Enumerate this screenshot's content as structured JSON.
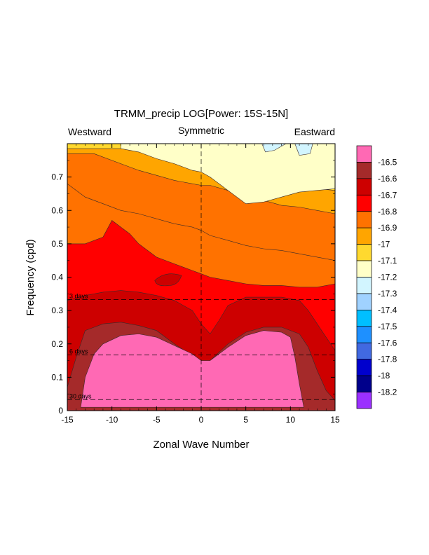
{
  "chart_data": {
    "type": "heatmap",
    "title": "TRMM_precip LOG[Power: 15S-15N]",
    "header_labels": {
      "left": "Westward",
      "center": "Symmetric",
      "right": "Eastward"
    },
    "xlabel": "Zonal Wave Number",
    "ylabel": "Frequency (cpd)",
    "xlim": [
      -15,
      15
    ],
    "ylim": [
      0,
      0.8
    ],
    "x_ticks": [
      -15,
      -10,
      -5,
      0,
      5,
      10,
      15
    ],
    "x_tick_labels": [
      "-15",
      "-10",
      "-5",
      "0",
      "5",
      "10",
      "15"
    ],
    "y_ticks": [
      0,
      0.1,
      0.2,
      0.3,
      0.4,
      0.5,
      0.6,
      0.7
    ],
    "y_tick_labels": [
      "0",
      "0.1",
      "0.2",
      "0.3",
      "0.4",
      "0.5",
      "0.6",
      "0.7"
    ],
    "period_lines": [
      {
        "label": "3 days",
        "frequency": 0.333
      },
      {
        "label": "6 days",
        "frequency": 0.167
      },
      {
        "label": "30 days",
        "frequency": 0.033
      }
    ],
    "colorbar": {
      "labels": [
        "-16.5",
        "-16.6",
        "-16.7",
        "-16.8",
        "-16.9",
        "-17",
        "-17.1",
        "-17.2",
        "-17.3",
        "-17.4",
        "-17.5",
        "-17.6",
        "-17.8",
        "-18",
        "-18.2"
      ],
      "colors": [
        "#ff69b4",
        "#a52a2a",
        "#cd0000",
        "#ff0000",
        "#ff7200",
        "#ffa500",
        "#ffd92f",
        "#ffffc8",
        "#d2f5ff",
        "#a0d2ff",
        "#00bfff",
        "#1e90ff",
        "#4169e1",
        "#0000cd",
        "#00008b",
        "#9b30ff"
      ]
    },
    "regions": [
      {
        "name": "band-orange-light",
        "color": "#ffa500",
        "x": [
          -15,
          -12,
          -9,
          -7,
          -5,
          -3,
          -1,
          0,
          1,
          3,
          5,
          7,
          9,
          11,
          13,
          15
        ],
        "y": [
          0.77,
          0.77,
          0.74,
          0.72,
          0.705,
          0.69,
          0.68,
          0.675,
          0.675,
          0.66,
          0.645,
          0.63,
          0.615,
          0.61,
          0.6,
          0.59
        ]
      },
      {
        "name": "band-yellow",
        "color": "#ffd92f",
        "x": [
          -15,
          -13,
          -11,
          -9,
          -7,
          -5,
          -3,
          -1,
          0,
          1,
          3,
          5,
          7,
          9,
          11,
          13,
          15
        ],
        "y": [
          0.785,
          0.785,
          0.785,
          0.785,
          0.785,
          0.775,
          0.765,
          0.755,
          0.75,
          0.72,
          0.7,
          0.7,
          0.69,
          0.685,
          0.675,
          0.665,
          0.66
        ]
      },
      {
        "name": "band-cream",
        "color": "#ffffc8",
        "x": [
          -9,
          -7,
          -5,
          -3,
          -1,
          0,
          1,
          3,
          5,
          7,
          9,
          11,
          13,
          15
        ],
        "y": [
          0.785,
          0.775,
          0.755,
          0.74,
          0.72,
          0.715,
          0.7,
          0.66,
          0.62,
          0.625,
          0.64,
          0.655,
          0.66,
          0.665
        ]
      },
      {
        "name": "band-orange-dark",
        "color": "#ff7200",
        "x": [
          -15,
          -13,
          -11,
          -9,
          -7,
          -5,
          -3,
          -1,
          0,
          1,
          3,
          5,
          7,
          9,
          11,
          13,
          15
        ],
        "y": [
          0.68,
          0.64,
          0.62,
          0.6,
          0.59,
          0.575,
          0.56,
          0.55,
          0.54,
          0.525,
          0.51,
          0.495,
          0.485,
          0.48,
          0.47,
          0.46,
          0.45
        ]
      },
      {
        "name": "band-red-bright",
        "color": "#ff0000",
        "x": [
          -15,
          -13,
          -11,
          -10,
          -9,
          -8,
          -7,
          -5,
          -3,
          -1,
          0,
          1,
          3,
          5,
          7,
          9,
          11,
          13,
          15
        ],
        "y": [
          0.5,
          0.5,
          0.52,
          0.57,
          0.55,
          0.53,
          0.5,
          0.46,
          0.44,
          0.42,
          0.41,
          0.4,
          0.39,
          0.38,
          0.375,
          0.375,
          0.37,
          0.37,
          0.38
        ]
      },
      {
        "name": "band-red",
        "color": "#cd0000",
        "x": [
          -15,
          -13,
          -11,
          -9,
          -7,
          -5,
          -3,
          -1,
          0,
          1,
          2,
          3,
          5,
          7,
          9,
          11,
          12,
          13,
          15
        ],
        "y": [
          0.33,
          0.345,
          0.355,
          0.36,
          0.355,
          0.345,
          0.33,
          0.3,
          0.26,
          0.23,
          0.27,
          0.315,
          0.34,
          0.34,
          0.34,
          0.33,
          0.3,
          0.26,
          0.18
        ]
      },
      {
        "name": "band-brown",
        "color": "#a52a2a",
        "x": [
          -15,
          -14,
          -13,
          -11,
          -9,
          -7,
          -5,
          -3,
          -1,
          0,
          1,
          3,
          5,
          7,
          9,
          11,
          12,
          13,
          14,
          15
        ],
        "y": [
          0.07,
          0.16,
          0.24,
          0.26,
          0.265,
          0.255,
          0.24,
          0.2,
          0.165,
          0.14,
          0.15,
          0.2,
          0.235,
          0.25,
          0.25,
          0.23,
          0.19,
          0.12,
          0.06,
          0.03
        ]
      },
      {
        "name": "band-pink",
        "color": "#ff69b4",
        "x": [
          -13.5,
          -13,
          -12,
          -11,
          -9,
          -7,
          -5,
          -3,
          -1,
          0,
          1,
          3,
          5,
          7,
          9,
          10,
          10.5,
          11,
          11.5
        ],
        "y": [
          0.01,
          0.1,
          0.17,
          0.2,
          0.225,
          0.23,
          0.22,
          0.195,
          0.17,
          0.15,
          0.15,
          0.19,
          0.225,
          0.24,
          0.235,
          0.22,
          0.16,
          0.08,
          0.01
        ]
      }
    ]
  }
}
